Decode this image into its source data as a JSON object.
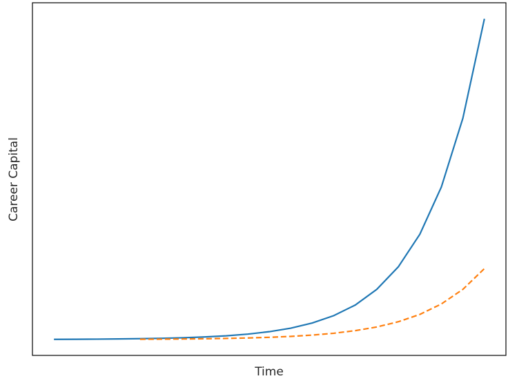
{
  "chart_data": {
    "type": "line",
    "xlabel": "Time",
    "ylabel": "Career Capital",
    "x": [
      0,
      0.5,
      1,
      1.5,
      2,
      2.5,
      3,
      3.5,
      4,
      4.5,
      5,
      5.5,
      6,
      6.5,
      7,
      7.5,
      8,
      8.5,
      9,
      9.5,
      10
    ],
    "series": [
      {
        "color": "#1f77b4",
        "linestyle": "solid",
        "values": [
          1.011,
          1.016,
          1.023,
          1.034,
          1.049,
          1.071,
          1.102,
          1.148,
          1.214,
          1.311,
          1.45,
          1.65,
          1.95,
          2.37,
          2.98,
          3.88,
          5.17,
          7.04,
          9.75,
          13.7,
          19.4
        ]
      },
      {
        "color": "#ff7f0e",
        "linestyle": "dashed",
        "values": [
          null,
          null,
          null,
          null,
          1.016,
          1.023,
          1.032,
          1.045,
          1.064,
          1.09,
          1.127,
          1.18,
          1.255,
          1.36,
          1.51,
          1.72,
          2.02,
          2.44,
          3.04,
          3.88,
          5.07
        ]
      }
    ],
    "xlim": [
      -0.5,
      10.5
    ],
    "ylim": [
      0.09,
      20.32
    ],
    "grid": false
  }
}
